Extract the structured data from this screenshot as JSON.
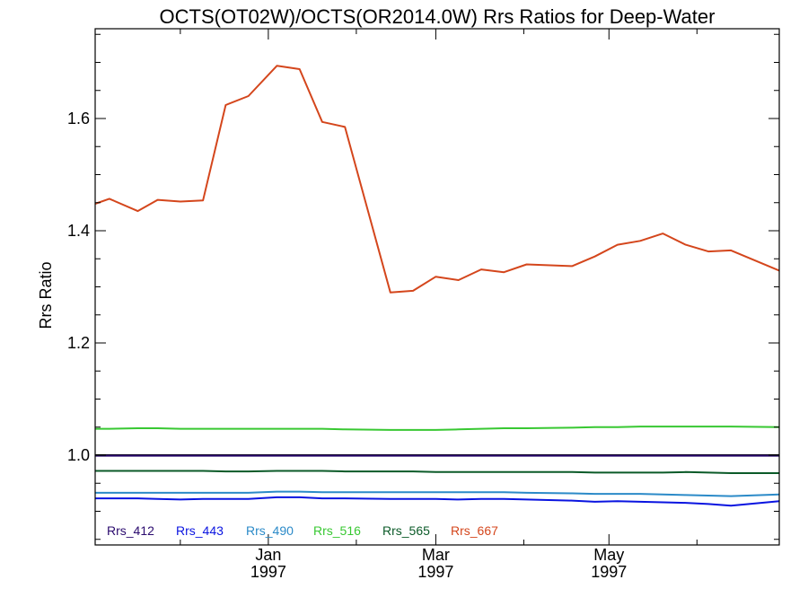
{
  "chart_data": {
    "type": "line",
    "title": "OCTS(OT02W)/OCTS(OR2014.0W)  Rrs Ratios for Deep-Water",
    "xlabel": "",
    "ylabel": "Rrs Ratio",
    "xlim": [
      "1996-11-01",
      "1997-06-30"
    ],
    "ylim": [
      0.84,
      1.76
    ],
    "yticks": [
      {
        "value": 1.0,
        "label": "1.0"
      },
      {
        "value": 1.2,
        "label": "1.2"
      },
      {
        "value": 1.4,
        "label": "1.4"
      },
      {
        "value": 1.6,
        "label": "1.6"
      }
    ],
    "yminor_step": 0.05,
    "xticks": [
      {
        "date": "1997-01-01",
        "month": "Jan",
        "year": "1997"
      },
      {
        "date": "1997-03-01",
        "month": "Mar",
        "year": "1997"
      },
      {
        "date": "1997-05-01",
        "month": "May",
        "year": "1997"
      }
    ],
    "xminor_dates": [
      "1996-11-01",
      "1996-12-01",
      "1997-02-01",
      "1997-04-01",
      "1997-06-01"
    ],
    "grid": false,
    "legend_position": "bottom-left, inside",
    "x": [
      "1996-11-01",
      "1996-11-06",
      "1996-11-16",
      "1996-11-23",
      "1996-12-01",
      "1996-12-09",
      "1996-12-17",
      "1996-12-25",
      "1997-01-04",
      "1997-01-12",
      "1997-01-20",
      "1997-01-28",
      "1997-02-13",
      "1997-02-21",
      "1997-03-01",
      "1997-03-09",
      "1997-03-17",
      "1997-03-25",
      "1997-04-02",
      "1997-04-18",
      "1997-04-26",
      "1997-05-04",
      "1997-05-12",
      "1997-05-20",
      "1997-05-28",
      "1997-06-05",
      "1997-06-13",
      "1997-06-30"
    ],
    "series": [
      {
        "name": "Rrs_412",
        "color": "#2a0a6e",
        "values": [
          0.999,
          0.999,
          0.999,
          0.999,
          0.999,
          0.999,
          0.999,
          0.999,
          0.999,
          0.999,
          0.999,
          0.999,
          0.999,
          0.999,
          0.999,
          0.999,
          0.999,
          0.999,
          0.999,
          0.999,
          0.999,
          0.999,
          0.999,
          0.999,
          0.999,
          0.999,
          0.999,
          0.999
        ]
      },
      {
        "name": "Rrs_443",
        "color": "#0a14e0",
        "values": [
          0.923,
          0.923,
          0.923,
          0.922,
          0.921,
          0.922,
          0.922,
          0.922,
          0.925,
          0.925,
          0.923,
          0.923,
          0.922,
          0.922,
          0.922,
          0.921,
          0.922,
          0.922,
          0.921,
          0.919,
          0.917,
          0.918,
          0.917,
          0.916,
          0.915,
          0.913,
          0.91,
          0.918
        ]
      },
      {
        "name": "Rrs_490",
        "color": "#2b8ac8",
        "values": [
          0.933,
          0.933,
          0.933,
          0.933,
          0.933,
          0.933,
          0.933,
          0.933,
          0.935,
          0.935,
          0.934,
          0.934,
          0.934,
          0.934,
          0.934,
          0.934,
          0.934,
          0.934,
          0.933,
          0.932,
          0.931,
          0.931,
          0.931,
          0.93,
          0.929,
          0.928,
          0.927,
          0.93
        ]
      },
      {
        "name": "Rrs_516",
        "color": "#38c832",
        "values": [
          1.047,
          1.047,
          1.048,
          1.048,
          1.047,
          1.047,
          1.047,
          1.047,
          1.047,
          1.047,
          1.047,
          1.046,
          1.045,
          1.045,
          1.045,
          1.046,
          1.047,
          1.048,
          1.048,
          1.049,
          1.05,
          1.05,
          1.051,
          1.051,
          1.051,
          1.051,
          1.051,
          1.05
        ]
      },
      {
        "name": "Rrs_565",
        "color": "#0b5a28",
        "values": [
          0.972,
          0.972,
          0.972,
          0.972,
          0.972,
          0.972,
          0.971,
          0.971,
          0.972,
          0.972,
          0.972,
          0.971,
          0.971,
          0.971,
          0.97,
          0.97,
          0.97,
          0.97,
          0.97,
          0.97,
          0.969,
          0.969,
          0.969,
          0.969,
          0.97,
          0.969,
          0.968,
          0.968
        ]
      },
      {
        "name": "Rrs_667",
        "color": "#d4461c",
        "values": [
          1.448,
          1.457,
          1.435,
          1.455,
          1.452,
          1.454,
          1.624,
          1.64,
          1.694,
          1.688,
          1.594,
          1.585,
          1.29,
          1.293,
          1.318,
          1.312,
          1.331,
          1.326,
          1.34,
          1.337,
          1.354,
          1.375,
          1.382,
          1.395,
          1.375,
          1.363,
          1.365,
          1.329
        ]
      }
    ]
  }
}
